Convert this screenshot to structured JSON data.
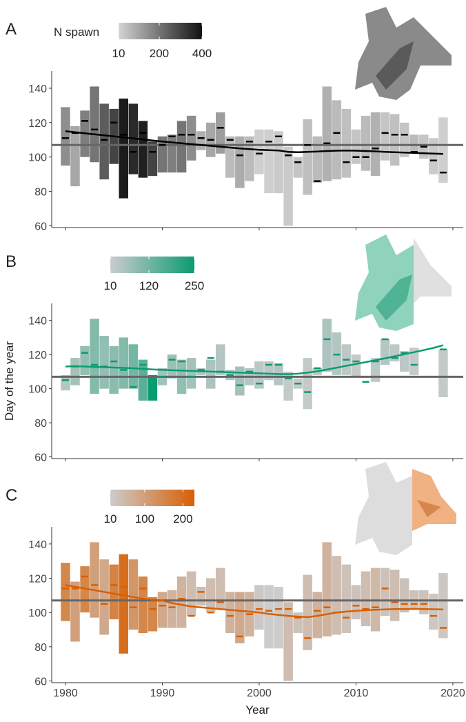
{
  "chart_data": [
    {
      "type": "range-bar",
      "label": "A",
      "legend_title": "N spawn",
      "clim": [
        10,
        400
      ],
      "colorbar_ticks": [
        10,
        200,
        400
      ],
      "color_low": "#d4d4d4",
      "color_high": "#111111",
      "line_color": "#000000",
      "x": [
        1980,
        1981,
        1982,
        1983,
        1984,
        1985,
        1986,
        1987,
        1988,
        1989,
        1990,
        1991,
        1992,
        1993,
        1994,
        1995,
        1996,
        1997,
        1998,
        1999,
        2000,
        2001,
        2002,
        2003,
        2004,
        2005,
        2006,
        2007,
        2008,
        2009,
        2010,
        2011,
        2012,
        2013,
        2014,
        2015,
        2016,
        2017,
        2018,
        2019
      ],
      "low": [
        95,
        83,
        100,
        97,
        87,
        96,
        76,
        90,
        88,
        89,
        91,
        91,
        91,
        98,
        104,
        100,
        102,
        88,
        82,
        86,
        90,
        79,
        79,
        60,
        88,
        78,
        85,
        86,
        87,
        88,
        96,
        92,
        89,
        98,
        95,
        100,
        102,
        99,
        90,
        85
      ],
      "high": [
        129,
        118,
        127,
        141,
        131,
        128,
        134,
        131,
        121,
        109,
        112,
        113,
        121,
        124,
        115,
        120,
        126,
        112,
        112,
        112,
        116,
        116,
        115,
        106,
        100,
        122,
        112,
        141,
        133,
        128,
        116,
        124,
        126,
        126,
        125,
        120,
        113,
        113,
        111,
        123
      ],
      "median": [
        111,
        114,
        121,
        116,
        110,
        120,
        113,
        103,
        114,
        103,
        107,
        112,
        113,
        113,
        111,
        110,
        117,
        110,
        101,
        109,
        102,
        109,
        112,
        101,
        97,
        107,
        86,
        108,
        114,
        97,
        100,
        100,
        105,
        114,
        113,
        113,
        103,
        106,
        98,
        91
      ],
      "n": [
        150,
        100,
        180,
        200,
        250,
        300,
        380,
        350,
        370,
        300,
        200,
        180,
        200,
        150,
        80,
        100,
        120,
        60,
        90,
        60,
        20,
        20,
        30,
        30,
        40,
        50,
        60,
        80,
        60,
        50,
        40,
        60,
        80,
        40,
        50,
        40,
        60,
        40,
        30,
        20
      ],
      "trend": [
        115,
        114.4,
        113.8,
        113.2,
        112.6,
        112,
        111.4,
        110.8,
        110.2,
        109.6,
        109,
        108.5,
        108,
        107.5,
        107,
        106.5,
        106,
        105.5,
        105,
        104.6,
        104.2,
        104,
        103.8,
        103,
        102.8,
        103,
        103.2,
        103.5,
        103.7,
        103.8,
        103.7,
        103.5,
        103.3,
        103,
        102.8,
        102.6,
        102.4,
        102.2,
        102,
        101.8
      ],
      "reference": 107,
      "ylim": [
        59,
        150
      ],
      "yticks": [
        60,
        80,
        100,
        120,
        140
      ],
      "xlim": [
        1978.58,
        2021.07
      ],
      "xticks": [
        1980,
        1990,
        2000,
        2010,
        2020
      ],
      "show_x_tick_labels": false
    },
    {
      "type": "range-bar",
      "label": "B",
      "y_label": "Day of the year",
      "clim": [
        10,
        250
      ],
      "colorbar_ticks": [
        10,
        120,
        250
      ],
      "color_low": "#cccccc",
      "color_high": "#0a9b72",
      "line_color": "#0a9b72",
      "x": [
        1980,
        1981,
        1982,
        1983,
        1984,
        1985,
        1986,
        1987,
        1988,
        1989,
        1990,
        1991,
        1992,
        1993,
        1994,
        1995,
        1996,
        1997,
        1998,
        1999,
        2000,
        2001,
        2002,
        2003,
        2004,
        2005,
        2006,
        2007,
        2008,
        2009,
        2010,
        2011,
        2012,
        2013,
        2014,
        2015,
        2016,
        2017,
        2018,
        2019
      ],
      "low": [
        99,
        102,
        108,
        97,
        100,
        97,
        100,
        100,
        93,
        93,
        102,
        106,
        97,
        100,
        108,
        100,
        108,
        105,
        96,
        102,
        100,
        105,
        102,
        93,
        100,
        88,
        108,
        110,
        108,
        108,
        107,
        null,
        104,
        114,
        116,
        110,
        108,
        null,
        null,
        95
      ],
      "high": [
        108,
        118,
        125,
        141,
        131,
        125,
        130,
        126,
        117,
        108,
        112,
        120,
        117,
        118,
        112,
        117,
        126,
        111,
        113,
        112,
        116,
        116,
        115,
        110,
        106,
        118,
        112,
        141,
        133,
        126,
        120,
        null,
        118,
        129,
        126,
        122,
        124,
        null,
        null,
        123
      ],
      "median": [
        105,
        113,
        121,
        114,
        113,
        116,
        111,
        101,
        114,
        104,
        107,
        117,
        116,
        107,
        111,
        118,
        110,
        108,
        102,
        110,
        103,
        114,
        114,
        106,
        103,
        98,
        112,
        129,
        120,
        117,
        116,
        104,
        116,
        129,
        118,
        121,
        114,
        null,
        null,
        123
      ],
      "n": [
        40,
        60,
        80,
        100,
        80,
        90,
        100,
        120,
        150,
        250,
        60,
        70,
        80,
        60,
        40,
        50,
        40,
        50,
        60,
        40,
        30,
        30,
        40,
        20,
        20,
        20,
        30,
        50,
        40,
        30,
        20,
        20,
        30,
        40,
        30,
        30,
        20,
        null,
        null,
        20
      ],
      "trend": [
        113,
        113.2,
        113,
        112.8,
        112.6,
        112.4,
        112.2,
        112,
        111.6,
        111.3,
        111,
        110.8,
        110.6,
        110.4,
        110.2,
        110,
        109.8,
        109.6,
        109.4,
        109.2,
        109,
        108.8,
        108.6,
        108.5,
        108.8,
        109.4,
        110.2,
        111.2,
        112.3,
        113.4,
        114.5,
        115.6,
        116.7,
        117.8,
        119,
        120.2,
        121.4,
        122.6,
        123.9,
        125.5
      ],
      "reference": 107,
      "ylim": [
        59,
        150
      ],
      "yticks": [
        60,
        80,
        100,
        120,
        140
      ],
      "xlim": [
        1978.58,
        2021.07
      ],
      "xticks": [
        1980,
        1990,
        2000,
        2010,
        2020
      ],
      "show_x_tick_labels": false
    },
    {
      "type": "range-bar",
      "label": "C",
      "x_label": "Year",
      "clim": [
        10,
        230
      ],
      "colorbar_ticks": [
        10,
        100,
        200
      ],
      "color_low": "#cccccc",
      "color_high": "#d95f02",
      "line_color": "#d95f02",
      "x": [
        1980,
        1981,
        1982,
        1983,
        1984,
        1985,
        1986,
        1987,
        1988,
        1989,
        1990,
        1991,
        1992,
        1993,
        1994,
        1995,
        1996,
        1997,
        1998,
        1999,
        2000,
        2001,
        2002,
        2003,
        2004,
        2005,
        2006,
        2007,
        2008,
        2009,
        2010,
        2011,
        2012,
        2013,
        2014,
        2015,
        2016,
        2017,
        2018,
        2019
      ],
      "low": [
        95,
        83,
        100,
        97,
        87,
        96,
        76,
        90,
        88,
        89,
        91,
        91,
        91,
        98,
        104,
        100,
        102,
        88,
        82,
        86,
        90,
        79,
        79,
        60,
        88,
        78,
        85,
        86,
        87,
        88,
        96,
        92,
        89,
        98,
        95,
        100,
        102,
        99,
        90,
        85
      ],
      "high": [
        129,
        118,
        127,
        141,
        131,
        128,
        134,
        131,
        121,
        109,
        112,
        113,
        121,
        124,
        115,
        120,
        126,
        112,
        112,
        112,
        116,
        116,
        115,
        106,
        100,
        122,
        112,
        141,
        133,
        128,
        116,
        124,
        126,
        126,
        125,
        120,
        113,
        113,
        111,
        123
      ],
      "median": [
        114,
        114,
        121,
        116,
        105,
        116,
        115,
        103,
        114,
        102,
        104,
        103,
        108,
        98,
        112,
        100,
        106,
        98,
        86,
        99,
        102,
        101,
        102,
        102,
        97,
        85,
        101,
        103,
        100,
        97,
        104,
        102,
        103,
        114,
        106,
        105,
        105,
        105,
        98,
        91
      ],
      "n": [
        150,
        100,
        150,
        100,
        80,
        160,
        200,
        120,
        150,
        150,
        80,
        60,
        60,
        40,
        40,
        40,
        40,
        60,
        80,
        60,
        20,
        10,
        10,
        40,
        30,
        40,
        60,
        60,
        40,
        30,
        30,
        40,
        50,
        30,
        40,
        30,
        30,
        30,
        20,
        20
      ],
      "trend": [
        116,
        115,
        114,
        113,
        112,
        111,
        110,
        109,
        108,
        107.5,
        107,
        105.5,
        104.5,
        103.5,
        103,
        102.5,
        102,
        101.5,
        101,
        100.5,
        100,
        99.2,
        98.6,
        98,
        97.6,
        97.3,
        98,
        99,
        100,
        100.5,
        101,
        101.3,
        101.6,
        101.8,
        102,
        102,
        102.1,
        102,
        101.9,
        101.8
      ],
      "reference": 107,
      "ylim": [
        59,
        150
      ],
      "yticks": [
        60,
        80,
        100,
        120,
        140
      ],
      "xlim": [
        1978.58,
        2021.07
      ],
      "xticks": [
        1980,
        1990,
        2000,
        2010,
        2020
      ],
      "show_x_tick_labels": true
    }
  ]
}
